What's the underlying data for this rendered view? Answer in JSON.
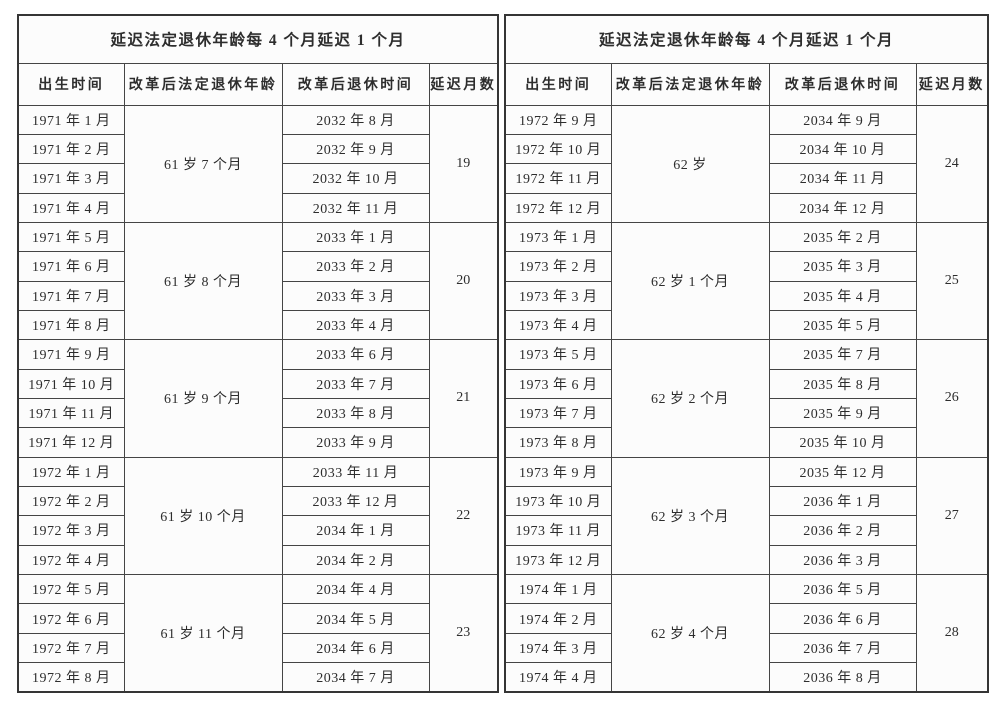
{
  "chart_data": {
    "type": "table",
    "panel_title": "延迟法定退休年龄每 4 个月延迟 1 个月",
    "columns": [
      "出生时间",
      "改革后法定退休年龄",
      "改革后退休时间",
      "延迟月数"
    ],
    "panels": [
      {
        "groups": [
          {
            "age": "61 岁 7 个月",
            "delay_months": "19",
            "birth_months": [
              "1971 年 1 月",
              "1971 年 2 月",
              "1971 年 3 月",
              "1971 年 4 月"
            ],
            "retire_months": [
              "2032 年 8 月",
              "2032 年 9 月",
              "2032 年 10 月",
              "2032 年 11 月"
            ]
          },
          {
            "age": "61 岁 8 个月",
            "delay_months": "20",
            "birth_months": [
              "1971 年 5 月",
              "1971 年 6 月",
              "1971 年 7 月",
              "1971 年 8 月"
            ],
            "retire_months": [
              "2033 年 1 月",
              "2033 年 2 月",
              "2033 年 3 月",
              "2033 年 4 月"
            ]
          },
          {
            "age": "61 岁 9 个月",
            "delay_months": "21",
            "birth_months": [
              "1971 年 9 月",
              "1971 年 10 月",
              "1971 年 11 月",
              "1971 年 12 月"
            ],
            "retire_months": [
              "2033 年 6 月",
              "2033 年 7 月",
              "2033 年 8 月",
              "2033 年 9 月"
            ]
          },
          {
            "age": "61 岁 10 个月",
            "delay_months": "22",
            "birth_months": [
              "1972 年 1 月",
              "1972 年 2 月",
              "1972 年 3 月",
              "1972 年 4 月"
            ],
            "retire_months": [
              "2033 年 11 月",
              "2033 年 12 月",
              "2034 年 1 月",
              "2034 年 2 月"
            ]
          },
          {
            "age": "61 岁 11 个月",
            "delay_months": "23",
            "birth_months": [
              "1972 年 5 月",
              "1972 年 6 月",
              "1972 年 7 月",
              "1972 年 8 月"
            ],
            "retire_months": [
              "2034 年 4 月",
              "2034 年 5 月",
              "2034 年 6 月",
              "2034 年 7 月"
            ]
          }
        ]
      },
      {
        "groups": [
          {
            "age": "62 岁",
            "delay_months": "24",
            "birth_months": [
              "1972 年 9 月",
              "1972 年 10 月",
              "1972 年 11 月",
              "1972 年 12 月"
            ],
            "retire_months": [
              "2034 年 9 月",
              "2034 年 10 月",
              "2034 年 11 月",
              "2034 年 12 月"
            ]
          },
          {
            "age": "62 岁 1 个月",
            "delay_months": "25",
            "birth_months": [
              "1973 年 1 月",
              "1973 年 2 月",
              "1973 年 3 月",
              "1973 年 4 月"
            ],
            "retire_months": [
              "2035 年 2 月",
              "2035 年 3 月",
              "2035 年 4 月",
              "2035 年 5 月"
            ]
          },
          {
            "age": "62 岁 2 个月",
            "delay_months": "26",
            "birth_months": [
              "1973 年 5 月",
              "1973 年 6 月",
              "1973 年 7 月",
              "1973 年 8 月"
            ],
            "retire_months": [
              "2035 年 7 月",
              "2035 年 8 月",
              "2035 年 9 月",
              "2035 年 10 月"
            ]
          },
          {
            "age": "62 岁 3 个月",
            "delay_months": "27",
            "birth_months": [
              "1973 年 9 月",
              "1973 年 10 月",
              "1973 年 11 月",
              "1973 年 12 月"
            ],
            "retire_months": [
              "2035 年 12 月",
              "2036 年 1 月",
              "2036 年 2 月",
              "2036 年 3 月"
            ]
          },
          {
            "age": "62 岁 4 个月",
            "delay_months": "28",
            "birth_months": [
              "1974 年 1 月",
              "1974 年 2 月",
              "1974 年 3 月",
              "1974 年 4 月"
            ],
            "retire_months": [
              "2036 年 5 月",
              "2036 年 6 月",
              "2036 年 7 月",
              "2036 年 8 月"
            ]
          }
        ]
      }
    ]
  },
  "colors": {
    "background": "#ffffff",
    "cell_background": "#fcfcfc",
    "border": "#454545",
    "outer_border": "#353535",
    "text": "#2d2d2d"
  }
}
